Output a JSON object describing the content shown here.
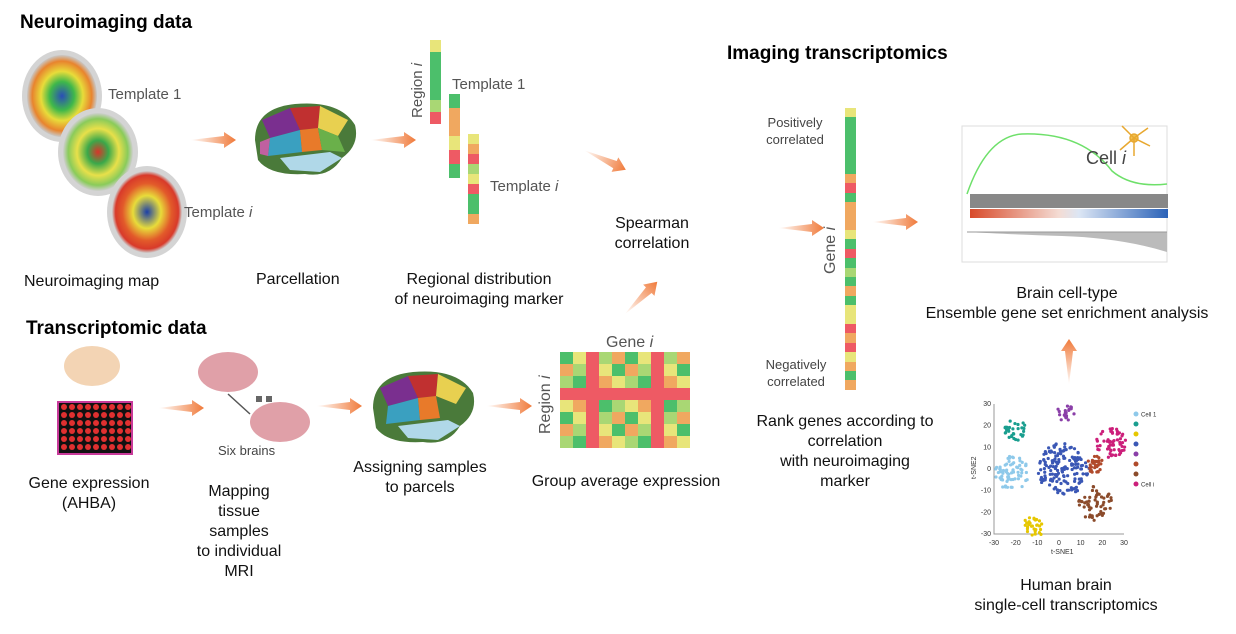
{
  "headings": {
    "neuro": "Neuroimaging data",
    "transcriptomic": "Transcriptomic data",
    "imaging_transcriptomics": "Imaging transcriptomics"
  },
  "labels": {
    "template1": "Template 1",
    "template_i_prefix": "Template ",
    "italic_i": "i",
    "neuroimaging_map": "Neuroimaging map",
    "parcellation": "Parcellation",
    "regional_line1": "Regional distribution",
    "regional_line2": "of neuroimaging marker",
    "region_prefix": "Region ",
    "spearman_line1": "Spearman",
    "spearman_line2": "correlation",
    "gene_prefix": "Gene ",
    "positively_line1": "Positively",
    "positively_line2": "correlated",
    "negatively_line1": "Negatively",
    "negatively_line2": "correlated",
    "rank_line1": "Rank genes according to",
    "rank_line2": "correlation",
    "rank_line3": "with neuroimaging",
    "rank_line4": "marker",
    "cell_prefix": "Cell ",
    "brain_celltype_line1": "Brain cell-type",
    "brain_celltype_line2": "Ensemble gene set enrichment analysis",
    "gene_expression_line1": "Gene expression",
    "gene_expression_line2": "(AHBA)",
    "six_brains": "Six brains",
    "mapping_line1": "Mapping",
    "mapping_line2": "tissue",
    "mapping_line3": "samples",
    "mapping_line4": "to individual",
    "mapping_line5": "MRI",
    "assigning_line1": "Assigning samples",
    "assigning_line2": "to parcels",
    "group_average": "Group average expression",
    "human_brain_line1": "Human brain",
    "human_brain_line2": "single-cell transcriptomics"
  },
  "tsne": {
    "xlabel": "t-SNE1",
    "ylabel": "t-SNE2",
    "xticks": [
      "-30",
      "-20",
      "-10",
      "0",
      "10",
      "20",
      "30"
    ],
    "yticks": [
      "30",
      "20",
      "10",
      "0",
      "-10",
      "-20",
      "-30"
    ],
    "legend": [
      {
        "label": "Cell 1",
        "color": "#8ec9ea"
      },
      {
        "label": "",
        "color": "#1a9e8f"
      },
      {
        "label": "",
        "color": "#e6c700"
      },
      {
        "label": "",
        "color": "#3a57b5"
      },
      {
        "label": "",
        "color": "#8a3fa8"
      },
      {
        "label": "",
        "color": "#b04a2b"
      },
      {
        "label": "",
        "color": "#8b4b2b"
      },
      {
        "label": "Cell i",
        "color": "#cc1f7a"
      }
    ]
  },
  "colors": {
    "green": "#4cbf6b",
    "lightgreen": "#a9d774",
    "yellow": "#e8e57a",
    "orange": "#f0a860",
    "red": "#ee5a64",
    "arrow": "#f07a3a"
  },
  "strips": {
    "strip1": [
      "yellow",
      "green",
      "green",
      "green",
      "green",
      "lightgreen",
      "red"
    ],
    "strip2": [
      "green",
      "orange",
      "orange",
      "yellow",
      "red",
      "green"
    ],
    "strip3": [
      "yellow",
      "orange",
      "red",
      "lightgreen",
      "yellow",
      "red",
      "green",
      "green",
      "orange"
    ],
    "gene_strip": [
      "yellow",
      "green",
      "green",
      "green",
      "green",
      "green",
      "green",
      "orange",
      "red",
      "green",
      "orange",
      "orange",
      "orange",
      "yellow",
      "green",
      "red",
      "green",
      "lightgreen",
      "green",
      "orange",
      "green",
      "yellow",
      "yellow",
      "red",
      "orange",
      "red",
      "yellow",
      "orange",
      "green",
      "orange"
    ]
  }
}
